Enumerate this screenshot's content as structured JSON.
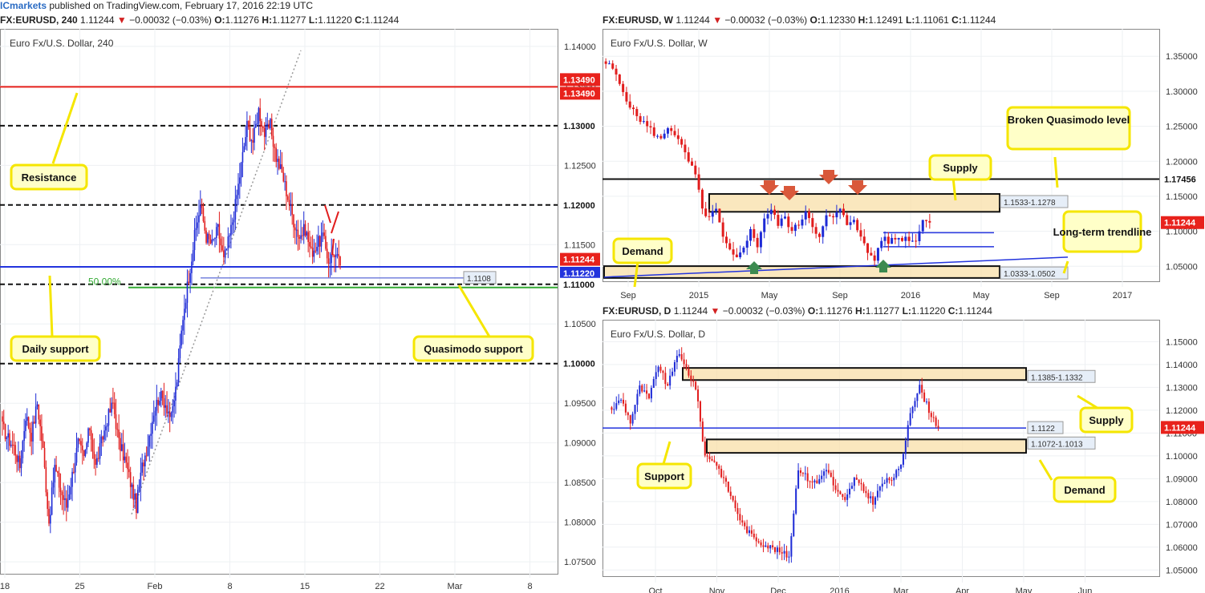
{
  "topbar": {
    "brand": "ICmarkets",
    "text": " published on TradingView.com, February 17, 2016 22:19 UTC"
  },
  "panels": {
    "h4": {
      "symbol": "FX:EURUSD, 240",
      "price": "1.11244",
      "change": "−0.00032 (−0.03%)",
      "o": "1.11276",
      "h": "1.11277",
      "l": "1.11220",
      "c": "1.11244",
      "name": "Euro Fx/U.S. Dollar, 240"
    },
    "weekly": {
      "symbol": "FX:EURUSD, W",
      "price": "1.11244",
      "change": "−0.00032 (−0.03%)",
      "o": "1.12330",
      "h": "1.12491",
      "l": "1.11061",
      "c": "1.11244",
      "name": "Euro Fx/U.S. Dollar, W"
    },
    "daily": {
      "symbol": "FX:EURUSD, D",
      "price": "1.11244",
      "change": "−0.00032 (−0.03%)",
      "o": "1.11276",
      "h": "1.11277",
      "l": "1.11220",
      "c": "1.11244",
      "name": "Euro Fx/U.S. Dollar, D"
    }
  },
  "chart_data": [
    {
      "type": "candlestick",
      "timeframe": "240",
      "ylim": [
        1.074,
        1.141
      ],
      "y_ticks": [
        "1.14000",
        "1.13500",
        "1.13000",
        "1.12500",
        "1.12000",
        "1.11500",
        "1.11000",
        "1.10500",
        "1.10000",
        "1.09500",
        "1.09000",
        "1.08500",
        "1.08000",
        "1.07500"
      ],
      "x_ticks": [
        "18",
        "25",
        "Feb",
        "8",
        "15",
        "22",
        "Mar",
        "8"
      ],
      "close_path": [
        1.092,
        1.0905,
        1.0895,
        1.087,
        1.0935,
        1.091,
        1.095,
        1.089,
        1.08,
        1.087,
        1.084,
        1.082,
        1.086,
        1.09,
        1.088,
        1.092,
        1.087,
        1.09,
        1.093,
        1.095,
        1.09,
        1.088,
        1.085,
        1.082,
        1.087,
        1.09,
        1.094,
        1.096,
        1.095,
        1.093,
        1.098,
        1.106,
        1.111,
        1.116,
        1.12,
        1.116,
        1.115,
        1.117,
        1.113,
        1.116,
        1.12,
        1.125,
        1.13,
        1.128,
        1.132,
        1.129,
        1.13,
        1.126,
        1.124,
        1.121,
        1.118,
        1.116,
        1.117,
        1.114,
        1.115,
        1.116,
        1.113,
        1.114,
        1.1124
      ],
      "price_labels": [
        {
          "value": "1.13490",
          "color": "#e8221c"
        },
        {
          "value": "1.13490",
          "color": "#e8221c"
        },
        {
          "value": "1.11244",
          "color": "#e8221c"
        },
        {
          "value": "1.11220",
          "color": "#2233dd"
        }
      ],
      "levels": [
        {
          "value": 1.1349,
          "style": "resistance",
          "color": "#e8221c"
        },
        {
          "value": 1.13,
          "style": "dashed",
          "color": "#111111"
        },
        {
          "value": 1.12,
          "style": "dashed",
          "color": "#111111"
        },
        {
          "value": 1.1122,
          "style": "daily-support",
          "color": "#2233dd"
        },
        {
          "value": 1.1108,
          "style": "quasimodo",
          "color": "#3344cc"
        },
        {
          "value": 1.11,
          "style": "dashed",
          "color": "#111111"
        },
        {
          "value": 1.1096,
          "style": "fib",
          "color": "#33aa33"
        },
        {
          "value": 1.1,
          "style": "dashed",
          "color": "#111111"
        }
      ],
      "annotations": {
        "resistance": "Resistance",
        "daily_support": "Daily support",
        "quasimodo": "Quasimodo support",
        "fib": "50.00%",
        "qm_value": "1.1108",
        "h_1130": "1.13000",
        "h_1120": "1.12000",
        "h_1110": "1.11000",
        "h_1100": "1.10000"
      }
    },
    {
      "type": "candlestick",
      "timeframe": "W",
      "ylim": [
        1.032,
        1.364
      ],
      "y_ticks": [
        "1.35000",
        "1.30000",
        "1.25000",
        "1.20000",
        "1.15000",
        "1.10000",
        "1.05000"
      ],
      "x_ticks": [
        "Sep",
        "2015",
        "May",
        "Sep",
        "2016",
        "May",
        "Sep",
        "2017"
      ],
      "close_path": [
        1.34,
        1.332,
        1.31,
        1.29,
        1.27,
        1.26,
        1.25,
        1.24,
        1.23,
        1.25,
        1.24,
        1.22,
        1.2,
        1.18,
        1.13,
        1.12,
        1.13,
        1.09,
        1.07,
        1.06,
        1.08,
        1.1,
        1.08,
        1.12,
        1.13,
        1.11,
        1.12,
        1.1,
        1.11,
        1.13,
        1.11,
        1.09,
        1.12,
        1.12,
        1.13,
        1.11,
        1.12,
        1.09,
        1.07,
        1.06,
        1.09,
        1.085,
        1.09,
        1.09,
        1.09,
        1.085,
        1.12,
        1.1124
      ],
      "price_labels": [
        {
          "value": "1.17456",
          "color": "#111111"
        },
        {
          "value": "1.11244",
          "color": "#e8221c"
        }
      ],
      "annotations": {
        "zone_supply": "1.1533-1.1278",
        "zone_demand": "1.0333-1.0502",
        "supply": "Supply",
        "demand": "Demand",
        "bq": "Broken Quasimodo level",
        "trendline": "Long-term trendline"
      }
    },
    {
      "type": "candlestick",
      "timeframe": "D",
      "ylim": [
        1.048,
        1.154
      ],
      "y_ticks": [
        "1.15000",
        "1.14000",
        "1.13000",
        "1.12000",
        "1.11000",
        "1.10000",
        "1.09000",
        "1.08000",
        "1.07000",
        "1.06000",
        "1.05000"
      ],
      "x_ticks": [
        "Oct",
        "Nov",
        "Dec",
        "2016",
        "Mar",
        "Apr",
        "May",
        "Jun"
      ],
      "close_path": [
        1.12,
        1.125,
        1.115,
        1.13,
        1.125,
        1.14,
        1.13,
        1.145,
        1.138,
        1.13,
        1.1,
        1.098,
        1.09,
        1.08,
        1.07,
        1.065,
        1.062,
        1.06,
        1.058,
        1.056,
        1.095,
        1.09,
        1.088,
        1.095,
        1.085,
        1.08,
        1.09,
        1.085,
        1.08,
        1.088,
        1.09,
        1.095,
        1.12,
        1.13,
        1.12,
        1.1124
      ],
      "price_labels": [
        {
          "value": "1.11244",
          "color": "#e8221c"
        }
      ],
      "annotations": {
        "zone_supply": "1.1385-1.1332",
        "zone_demand": "1.1072-1.1013",
        "support_value": "1.1122",
        "supply": "Supply",
        "demand": "Demand",
        "support": "Support"
      }
    }
  ]
}
